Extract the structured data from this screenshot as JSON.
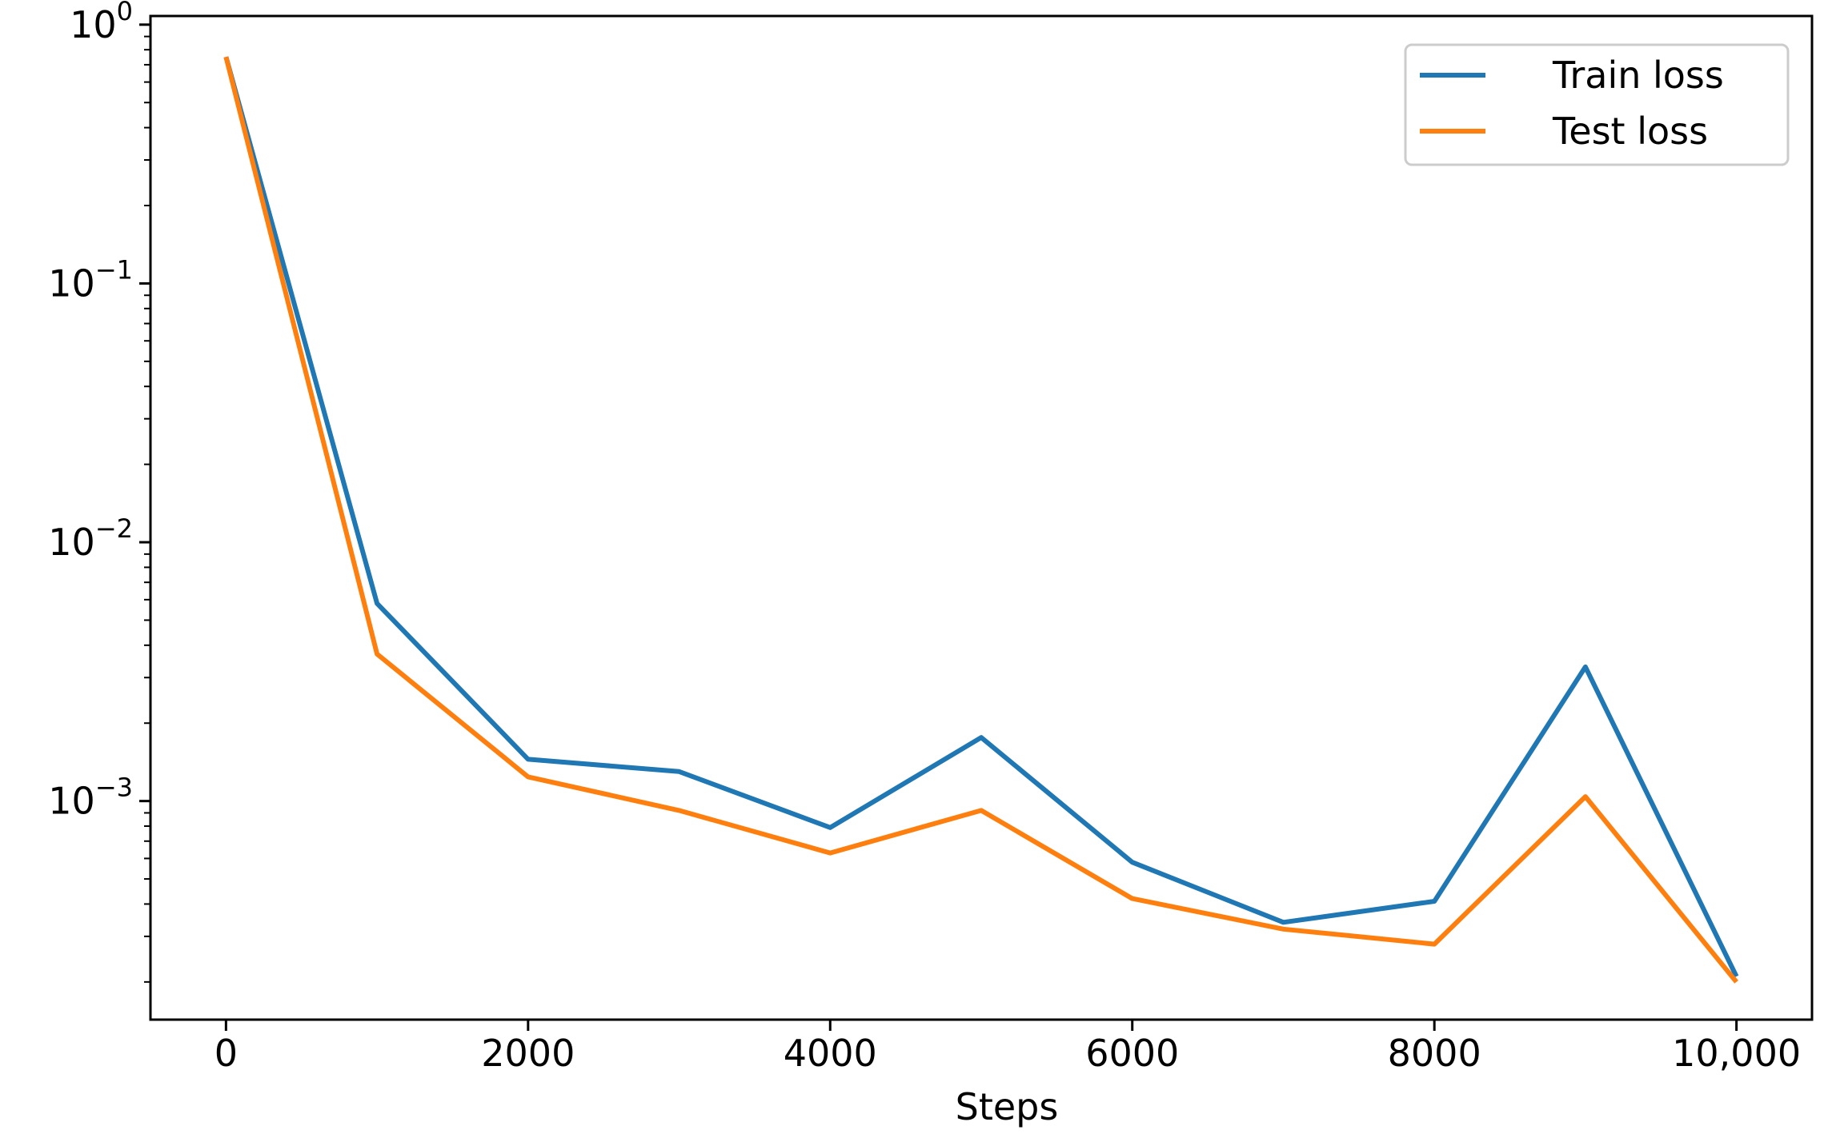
{
  "chart_data": {
    "type": "line",
    "title": "",
    "xlabel": "Steps",
    "ylabel": "",
    "x": [
      0,
      1000,
      2000,
      3000,
      4000,
      5000,
      6000,
      7000,
      8000,
      9000,
      10000
    ],
    "x_ticks": [
      0,
      2000,
      4000,
      6000,
      8000,
      10000
    ],
    "x_tick_labels": [
      "0",
      "2000",
      "4000",
      "6000",
      "8000",
      "10,000"
    ],
    "xlim": [
      -500,
      10500
    ],
    "y_scale": "log",
    "ylim": [
      0.000143,
      1.08
    ],
    "y_ticks": [
      {
        "value": 1,
        "base": "10",
        "exp": "0"
      },
      {
        "value": 0.1,
        "base": "10",
        "exp": "−1"
      },
      {
        "value": 0.01,
        "base": "10",
        "exp": "−2"
      },
      {
        "value": 0.001,
        "base": "10",
        "exp": "−3"
      }
    ],
    "grid": false,
    "legend_position": "top-right",
    "series": [
      {
        "name": "Train loss",
        "color": "#1f77b4",
        "values": [
          0.75,
          0.0058,
          0.00145,
          0.0013,
          0.00079,
          0.00176,
          0.00058,
          0.00034,
          0.00041,
          0.0033,
          0.00021
        ]
      },
      {
        "name": "Test loss",
        "color": "#ff7f0e",
        "values": [
          0.75,
          0.0037,
          0.00124,
          0.00092,
          0.00063,
          0.00092,
          0.00042,
          0.00032,
          0.00028,
          0.00104,
          0.0002
        ]
      }
    ]
  }
}
